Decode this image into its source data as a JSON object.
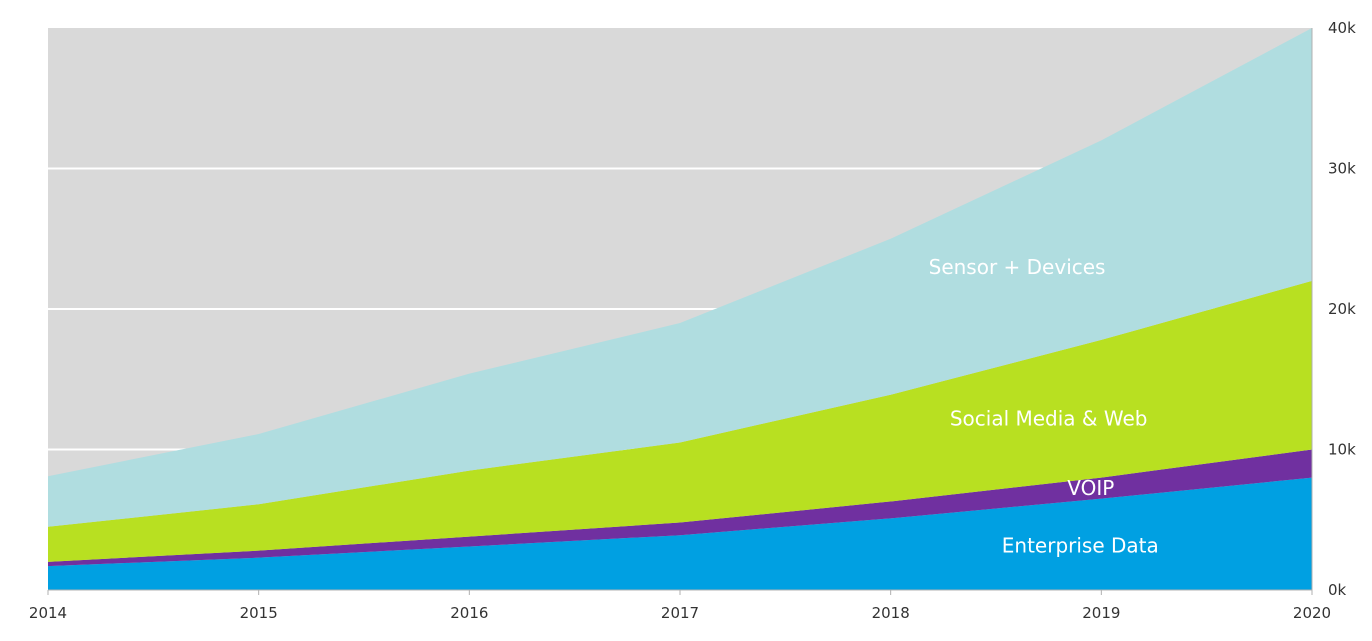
{
  "chart_data": {
    "type": "area",
    "stacked": true,
    "x": [
      2014,
      2015,
      2016,
      2017,
      2018,
      2019,
      2020
    ],
    "x_tick_labels": [
      "2014",
      "2015",
      "2016",
      "2017",
      "2018",
      "2019",
      "2020"
    ],
    "y_tick_labels": [
      "0k",
      "10k",
      "20k",
      "30k",
      "40k"
    ],
    "y_ticks": [
      0,
      10000,
      20000,
      30000,
      40000
    ],
    "ylim": [
      0,
      40000
    ],
    "xlim": [
      2014,
      2020
    ],
    "y_axis_position": "right",
    "grid": true,
    "legend": "none",
    "series": [
      {
        "name": "Enterprise Data",
        "values": [
          1700,
          2300,
          3100,
          3900,
          5100,
          6500,
          8000
        ],
        "color": "#00a0e2"
      },
      {
        "name": "VOIP",
        "values": [
          300,
          500,
          700,
          900,
          1200,
          1500,
          2000
        ],
        "color": "#7030a0"
      },
      {
        "name": "Social Media & Web",
        "values": [
          2500,
          3300,
          4700,
          5700,
          7600,
          9800,
          12000
        ],
        "color": "#b8e021"
      },
      {
        "name": "Sensor + Devices",
        "values": [
          3600,
          5000,
          6900,
          8500,
          11100,
          14200,
          18000
        ],
        "color": "#b0dde0"
      }
    ],
    "plot_background": "#d9d9d9",
    "grid_color": "#ffffff",
    "axis_line_color": "#b0b0b0"
  }
}
